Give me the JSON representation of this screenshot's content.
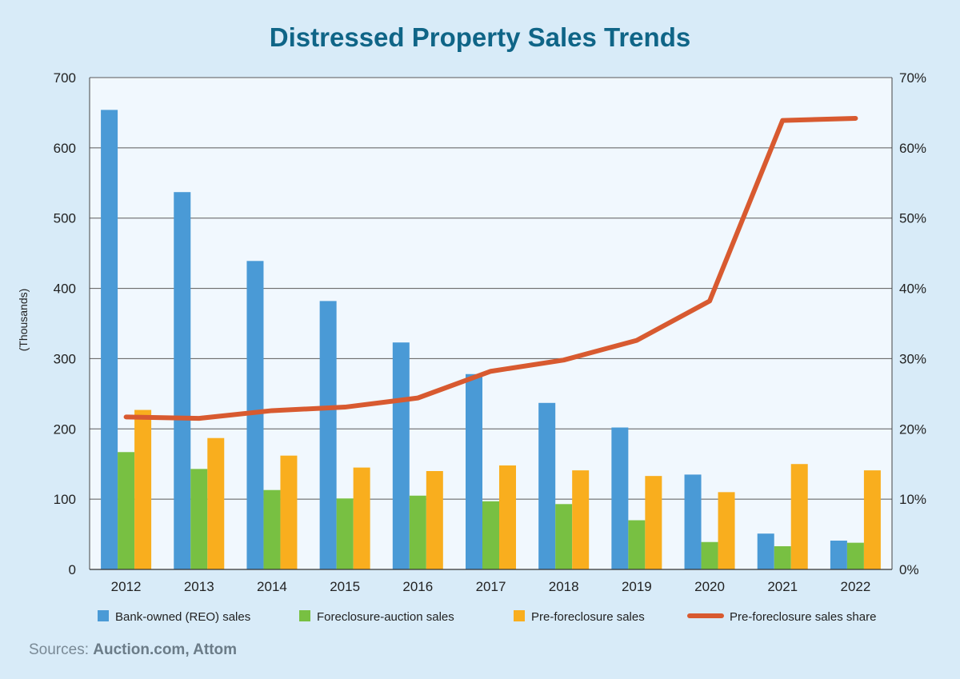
{
  "chart_data": {
    "type": "bar",
    "title": "Distressed Property Sales Trends",
    "ylabel": "(Thousands)",
    "categories": [
      "2012",
      "2013",
      "2014",
      "2015",
      "2016",
      "2017",
      "2018",
      "2019",
      "2020",
      "2021",
      "2022"
    ],
    "ylim": [
      0,
      700
    ],
    "yticks": [
      "0",
      "100",
      "200",
      "300",
      "400",
      "500",
      "600",
      "700"
    ],
    "y2lim": [
      0,
      70
    ],
    "y2ticks": [
      "0%",
      "10%",
      "20%",
      "30%",
      "40%",
      "50%",
      "60%",
      "70%"
    ],
    "series": [
      {
        "name": "Bank-owned (REO) sales",
        "type": "bar",
        "axis": "left",
        "color": "#4a9ad6",
        "values": [
          654,
          537,
          439,
          382,
          323,
          278,
          237,
          202,
          135,
          51,
          41
        ]
      },
      {
        "name": "Foreclosure-auction sales",
        "type": "bar",
        "axis": "left",
        "color": "#78c042",
        "values": [
          167,
          143,
          113,
          101,
          105,
          97,
          93,
          70,
          39,
          33,
          38
        ]
      },
      {
        "name": "Pre-foreclosure sales",
        "type": "bar",
        "axis": "left",
        "color": "#f9ae1e",
        "values": [
          227,
          187,
          162,
          145,
          140,
          148,
          141,
          133,
          110,
          150,
          141
        ]
      },
      {
        "name": "Pre-foreclosure sales share",
        "type": "line",
        "axis": "right",
        "color": "#d85a30",
        "values": [
          21.7,
          21.5,
          22.6,
          23.1,
          24.4,
          28.2,
          29.8,
          32.6,
          38.2,
          63.9,
          64.2
        ]
      }
    ],
    "grid": true,
    "legend": "bottom"
  },
  "source": {
    "label": "Sources: ",
    "names": "Auction.com, Attom"
  }
}
